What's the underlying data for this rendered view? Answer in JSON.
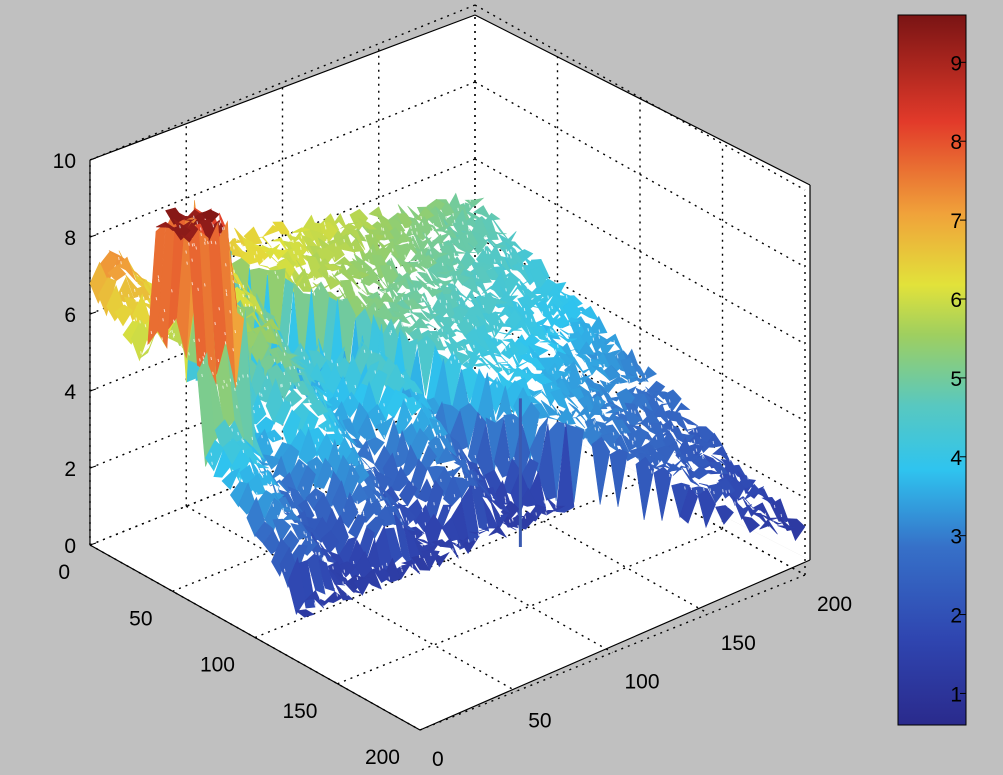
{
  "chart_data": {
    "type": "surface3d",
    "title": "",
    "xlabel": "",
    "ylabel": "",
    "zlabel": "",
    "x_axis": {
      "range": [
        0,
        200
      ],
      "ticks": [
        "0",
        "50",
        "100",
        "150",
        "200"
      ]
    },
    "y_axis": {
      "range": [
        0,
        200
      ],
      "ticks": [
        "0",
        "50",
        "100",
        "150",
        "200"
      ]
    },
    "z_axis": {
      "range": [
        0,
        10
      ],
      "ticks": [
        "0",
        "2",
        "4",
        "6",
        "8",
        "10"
      ]
    },
    "grid": true,
    "colormap": "jet",
    "colorbar": {
      "range": [
        0.6,
        9.6
      ],
      "ticks": [
        "1",
        "2",
        "3",
        "4",
        "5",
        "6",
        "7",
        "8",
        "9"
      ]
    },
    "surface_profile": {
      "description_rows_along_y": [
        0,
        25,
        50,
        75,
        100,
        125,
        150,
        175,
        200
      ],
      "left_region_z_near_back": 7.0,
      "peak_block": {
        "y_range": [
          40,
          60
        ],
        "x_range": [
          0,
          20
        ],
        "z": 9.6
      },
      "left_region_z_front": 1.5,
      "right_ridge": {
        "x_at_y0": 50,
        "x_at_y200": 190,
        "z_back": 7.0,
        "z_front": 1.0
      },
      "right_region_z_mid": 4.0,
      "spike": {
        "z": 5.5
      }
    }
  },
  "colors": {
    "background": "#c0c0c0",
    "axes_face": "#ffffff",
    "grid": "#000000"
  }
}
